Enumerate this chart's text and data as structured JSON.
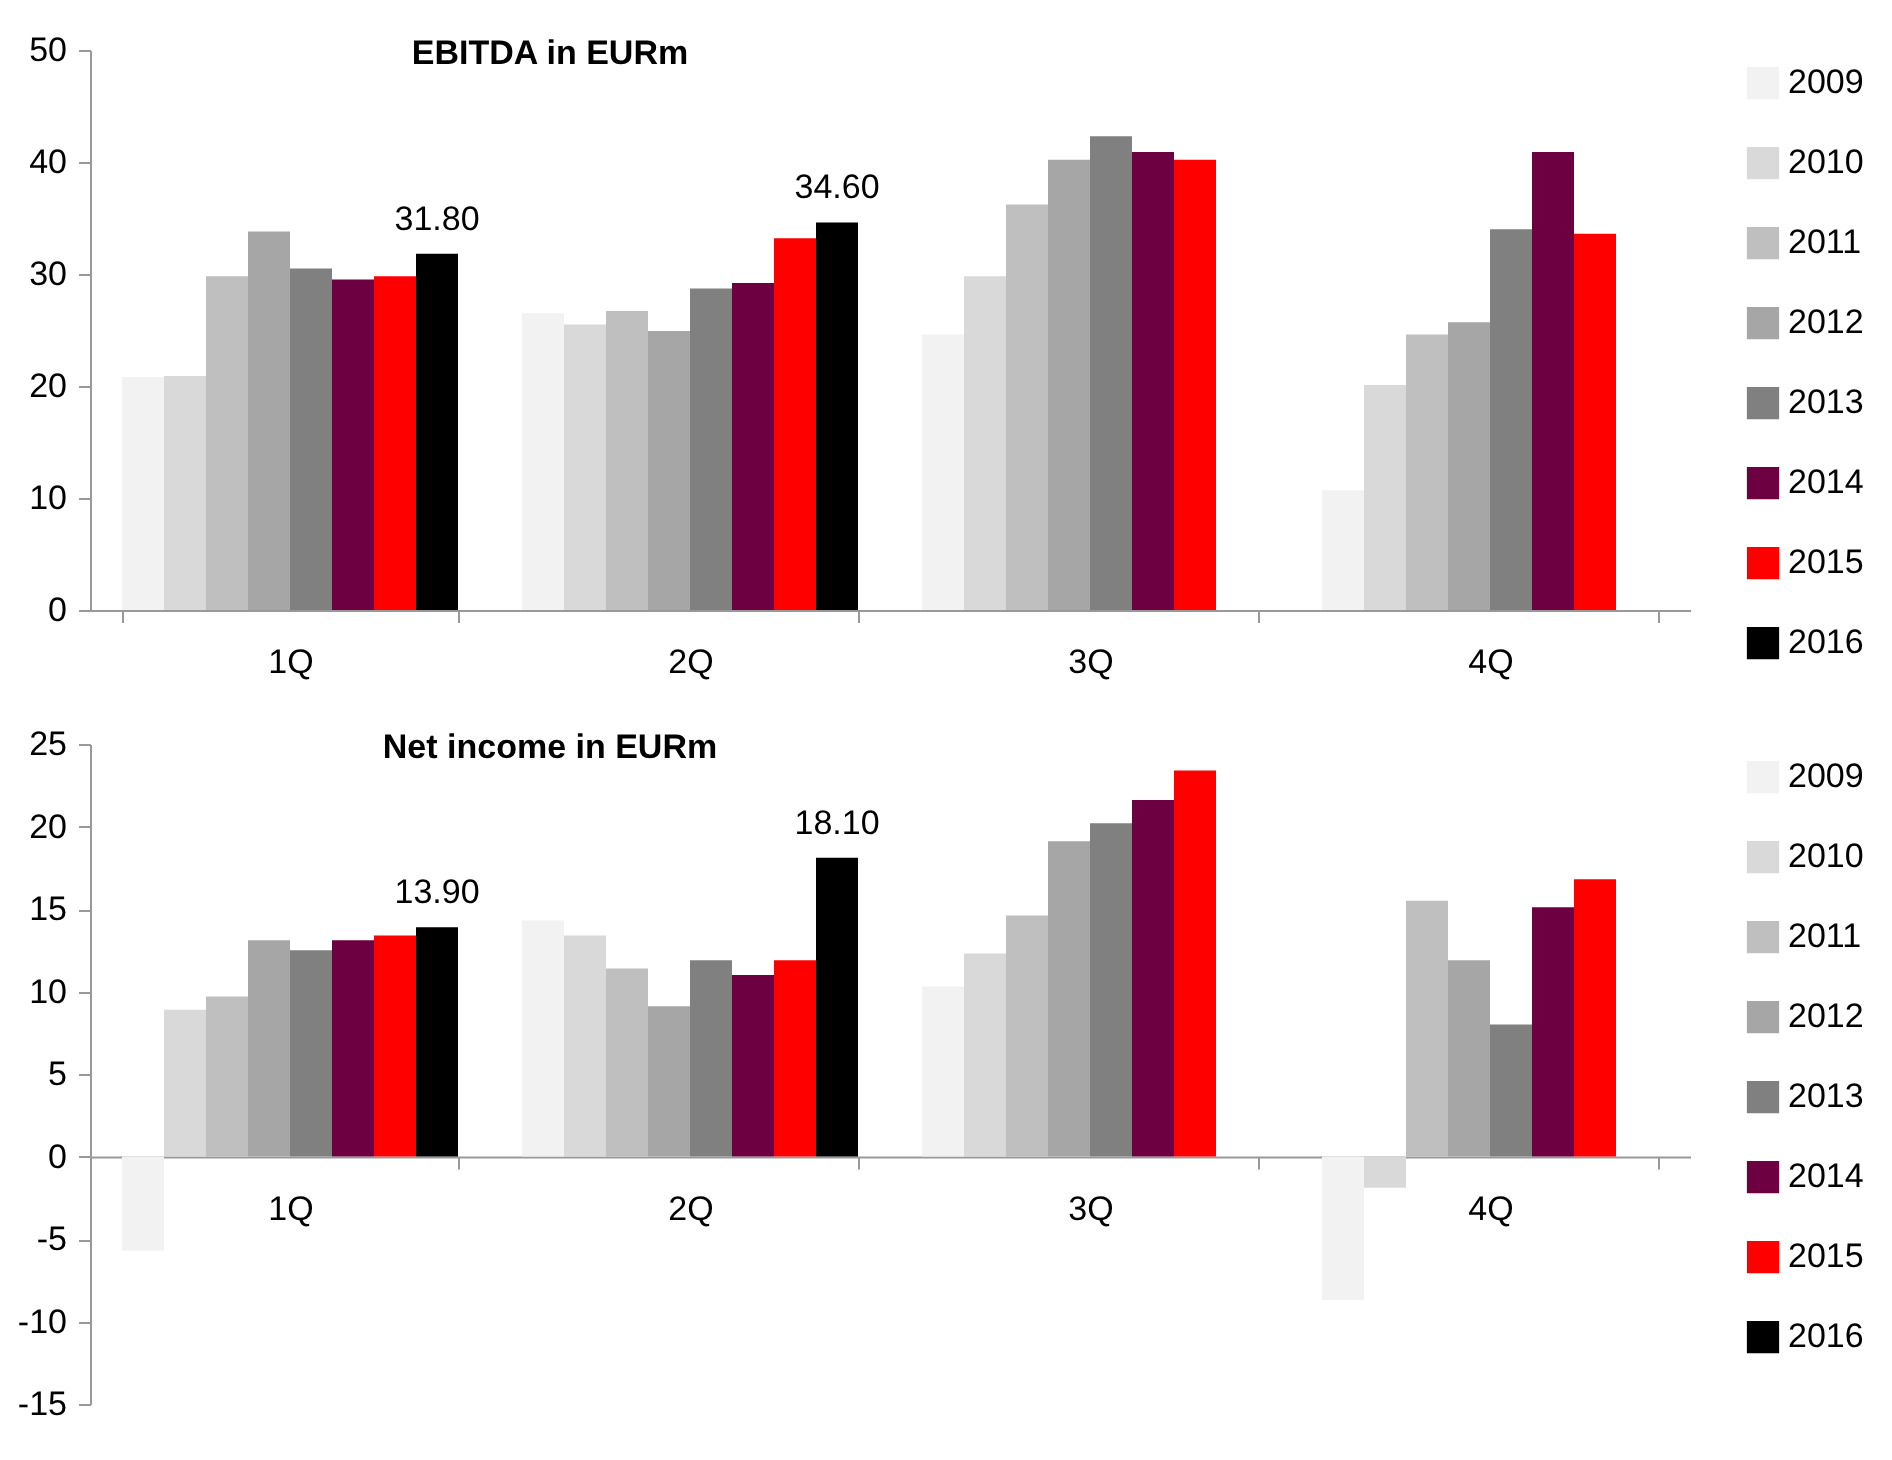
{
  "chart_data": [
    {
      "type": "bar",
      "title": "EBITDA in EURm",
      "categories": [
        "1Q",
        "2Q",
        "3Q",
        "4Q"
      ],
      "ylim": [
        0,
        50
      ],
      "yticks": [
        0,
        10,
        20,
        30,
        40,
        50
      ],
      "grid": false,
      "legend": "right",
      "series": [
        {
          "name": "2009",
          "color": "#f2f2f2",
          "values": [
            20.8,
            26.5,
            24.6,
            10.7
          ]
        },
        {
          "name": "2010",
          "color": "#d9d9d9",
          "values": [
            20.9,
            25.5,
            29.8,
            20.1
          ]
        },
        {
          "name": "2011",
          "color": "#bfbfbf",
          "values": [
            29.8,
            26.7,
            36.2,
            24.6
          ]
        },
        {
          "name": "2012",
          "color": "#a6a6a6",
          "values": [
            33.8,
            24.9,
            40.2,
            25.7
          ]
        },
        {
          "name": "2013",
          "color": "#808080",
          "values": [
            30.5,
            28.7,
            42.3,
            34.0
          ]
        },
        {
          "name": "2014",
          "color": "#6d0040",
          "values": [
            29.5,
            29.2,
            40.9,
            40.9
          ]
        },
        {
          "name": "2015",
          "color": "#ff0000",
          "values": [
            29.8,
            33.2,
            40.2,
            33.6
          ]
        },
        {
          "name": "2016",
          "color": "#000000",
          "values": [
            31.8,
            34.6,
            null,
            null
          ],
          "value_labels": [
            "31.80",
            "34.60",
            null,
            null
          ]
        }
      ]
    },
    {
      "type": "bar",
      "title": "Net income in EURm",
      "categories": [
        "1Q",
        "2Q",
        "3Q",
        "4Q"
      ],
      "ylim": [
        -15,
        25
      ],
      "yticks": [
        -15,
        -10,
        -5,
        0,
        5,
        10,
        15,
        20,
        25
      ],
      "grid": false,
      "legend": "right",
      "series": [
        {
          "name": "2009",
          "color": "#f2f2f2",
          "values": [
            -5.7,
            14.3,
            10.3,
            -8.7
          ]
        },
        {
          "name": "2010",
          "color": "#d9d9d9",
          "values": [
            8.9,
            13.4,
            12.3,
            -1.9
          ]
        },
        {
          "name": "2011",
          "color": "#bfbfbf",
          "values": [
            9.7,
            11.4,
            14.6,
            15.5
          ]
        },
        {
          "name": "2012",
          "color": "#a6a6a6",
          "values": [
            13.1,
            9.1,
            19.1,
            11.9
          ]
        },
        {
          "name": "2013",
          "color": "#808080",
          "values": [
            12.5,
            11.9,
            20.2,
            8.0
          ]
        },
        {
          "name": "2014",
          "color": "#6d0040",
          "values": [
            13.1,
            11.0,
            21.6,
            15.1
          ]
        },
        {
          "name": "2015",
          "color": "#ff0000",
          "values": [
            13.4,
            11.9,
            23.4,
            16.8
          ]
        },
        {
          "name": "2016",
          "color": "#000000",
          "values": [
            13.9,
            18.1,
            null,
            null
          ],
          "value_labels": [
            "13.90",
            "18.10",
            null,
            null
          ]
        }
      ]
    }
  ]
}
